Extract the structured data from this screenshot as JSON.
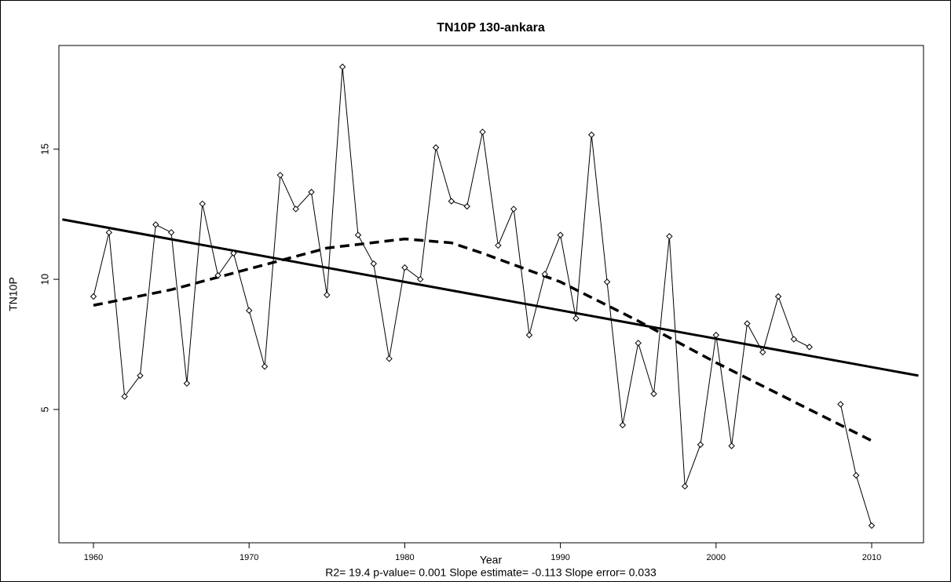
{
  "chart_data": {
    "type": "line",
    "title": "TN10P   130-ankara",
    "x_label": "Year",
    "y_label": "TN10P",
    "annotation": "R2= 19.4  p-value= 0.001  Slope estimate= -0.113  Slope error= 0.033",
    "x": [
      1960,
      1961,
      1962,
      1963,
      1964,
      1965,
      1966,
      1967,
      1968,
      1969,
      1970,
      1971,
      1972,
      1973,
      1974,
      1975,
      1976,
      1977,
      1978,
      1979,
      1980,
      1981,
      1982,
      1983,
      1984,
      1985,
      1986,
      1987,
      1988,
      1989,
      1990,
      1991,
      1992,
      1993,
      1994,
      1995,
      1996,
      1997,
      1998,
      1999,
      2000,
      2001,
      2002,
      2003,
      2004,
      2005,
      2006,
      2007,
      2008,
      2009,
      2010
    ],
    "values": [
      9.34,
      11.8,
      5.5,
      6.3,
      12.1,
      11.8,
      6.0,
      12.9,
      10.15,
      11.0,
      8.8,
      6.65,
      14.0,
      12.7,
      13.35,
      9.4,
      18.16,
      11.7,
      10.6,
      6.95,
      10.45,
      10.0,
      15.06,
      13.0,
      12.8,
      15.66,
      11.3,
      12.7,
      7.86,
      10.2,
      11.7,
      8.5,
      15.55,
      9.9,
      4.4,
      7.55,
      5.6,
      11.65,
      2.05,
      3.65,
      7.86,
      3.6,
      8.3,
      7.2,
      9.34,
      7.7,
      7.4,
      null,
      5.2,
      2.47,
      0.54
    ],
    "color": "#000000",
    "fit_line": {
      "x": [
        1958,
        2013
      ],
      "values": [
        12.3,
        6.3
      ]
    },
    "smooth_line": {
      "x": [
        1960,
        1965,
        1970,
        1975,
        1980,
        1983,
        1985,
        1990,
        1995,
        2000,
        2005,
        2010
      ],
      "values": [
        9.0,
        9.6,
        10.4,
        11.2,
        11.55,
        11.4,
        11.0,
        9.9,
        8.4,
        6.8,
        5.3,
        3.8
      ]
    },
    "xlim": [
      1957.78,
      2013.33
    ],
    "ylim": [
      -0.12,
      18.98
    ],
    "xticks": [
      1960,
      1970,
      1980,
      1990,
      2000,
      2010
    ],
    "yticks": [
      5,
      10,
      15
    ]
  }
}
